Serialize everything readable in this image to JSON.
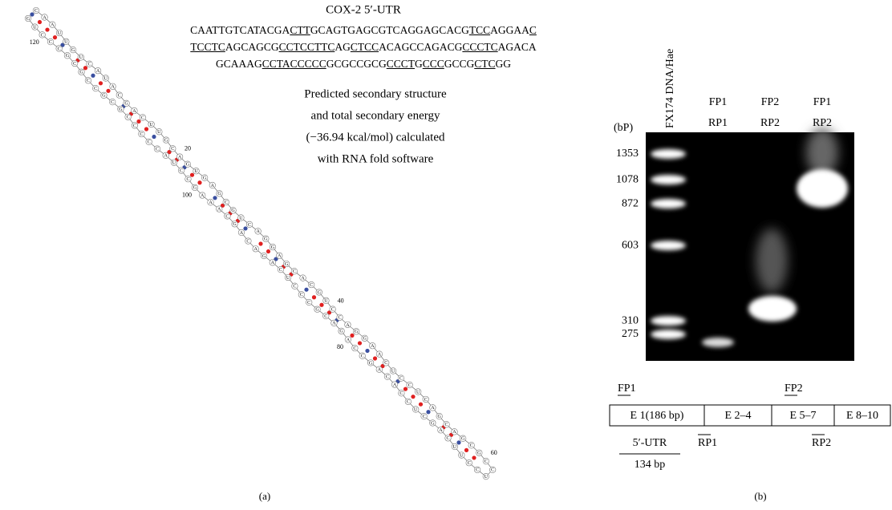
{
  "panel_a": {
    "title": "COX-2 5′-UTR",
    "sequence_lines": [
      [
        {
          "text": "CAATTGTCATACGA",
          "underline": false
        },
        {
          "text": "CTT",
          "underline": true
        },
        {
          "text": "GCAGTGAGCGTCAGGAGCACG",
          "underline": false
        },
        {
          "text": "TCC",
          "underline": true
        },
        {
          "text": "AGGAA",
          "underline": false
        },
        {
          "text": "C",
          "underline": true
        }
      ],
      [
        {
          "text": "TCCTC",
          "underline": true
        },
        {
          "text": "AGCAGCG",
          "underline": false
        },
        {
          "text": "CCTCCTTC",
          "underline": true
        },
        {
          "text": "AG",
          "underline": false
        },
        {
          "text": "CTCC",
          "underline": true
        },
        {
          "text": "ACAGCCAGACG",
          "underline": false
        },
        {
          "text": "CCCTC",
          "underline": true
        },
        {
          "text": "AGACA",
          "underline": false
        }
      ],
      [
        {
          "text": "GCAAAG",
          "underline": false
        },
        {
          "text": "CCTA",
          "underline": true
        },
        {
          "text": "CCCCC",
          "underline": true
        },
        {
          "text": "GCGCCGCG",
          "underline": false
        },
        {
          "text": "CCCT",
          "underline": true
        },
        {
          "text": "G",
          "underline": false
        },
        {
          "text": "CCC",
          "underline": true
        },
        {
          "text": "GCCG",
          "underline": false
        },
        {
          "text": "CTC",
          "underline": true
        },
        {
          "text": "GG",
          "underline": false
        }
      ]
    ],
    "description": [
      "Predicted secondary structure",
      "and total secondary energy",
      "(−36.94 kcal/mol) calculated",
      "with RNA fold software"
    ],
    "structure": {
      "letters": "CAAUUGUCAUACGACUUGCAGUGAGCGUCAGGAGCACGUCCAGGAACUCCUCAGCAGCGCCUCCUUCAGCUCCACAGCCAGACGCCCUCAGACAGCAAAGCCUACCCCCGCGCCGCGCCCUG",
      "numbers": [
        20,
        40,
        60,
        80,
        100,
        120
      ]
    },
    "caption": "(a)"
  },
  "panel_b": {
    "ladder_label": "FX174 DNA/Hae",
    "unit": "(bP)",
    "ladder": [
      1353,
      1078,
      872,
      603,
      310,
      275
    ],
    "lanes": [
      [
        "FP1",
        "RP1"
      ],
      [
        "FP2",
        "RP2"
      ],
      [
        "FP1",
        "RP2"
      ]
    ],
    "exons": [
      "E 1(186 bp)",
      "E 2–4",
      "E 5–7",
      "E 8–10"
    ],
    "forward_primers": [
      "FP1",
      "FP2"
    ],
    "reverse_primers": [
      "RP1",
      "RP2"
    ],
    "utr": "5′-UTR",
    "utr_length": "134 bp",
    "caption": "(b)"
  }
}
